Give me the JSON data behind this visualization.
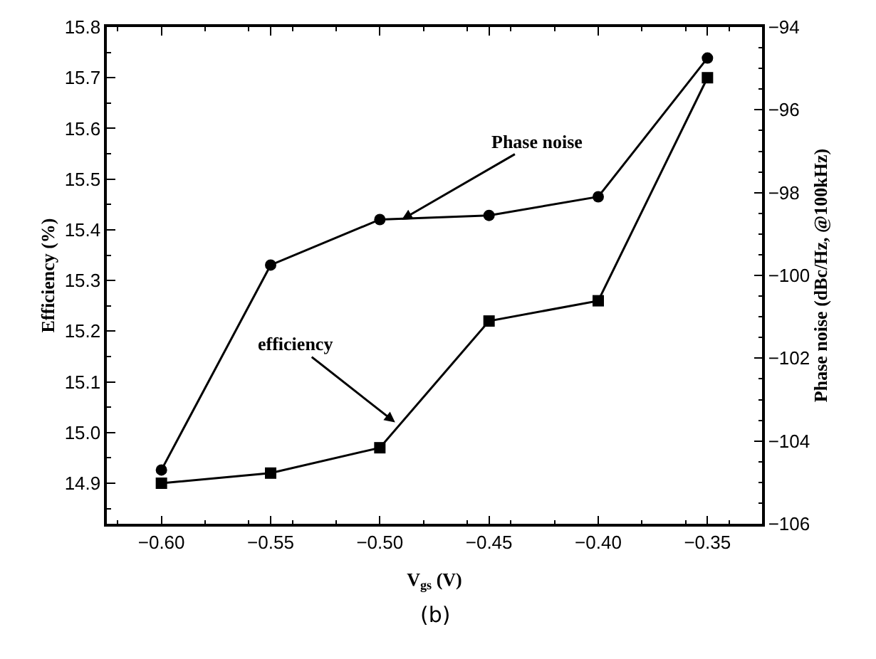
{
  "chart_data": {
    "type": "line",
    "xlabel": "V$_{gs}$ (V)",
    "ylabel": "Efficiency (%)",
    "y2label": "Phase noise (dBc/Hz, @100kHz)",
    "x": [
      -0.6,
      -0.55,
      -0.5,
      -0.45,
      -0.4,
      -0.35
    ],
    "series": [
      {
        "color": "#000000",
        "marker": "square",
        "values": [
          14.9,
          14.92,
          14.97,
          15.22,
          15.26,
          15.7
        ]
      },
      {
        "color": "#000000",
        "marker": "circle",
        "axis": "y2",
        "values": [
          -104.7,
          -99.75,
          -98.65,
          -98.55,
          -98.1,
          -94.75
        ]
      }
    ],
    "xlim": [
      -0.625,
      -0.325
    ],
    "xticks": [
      {
        "value": -0.6,
        "label": "−0.60"
      },
      {
        "value": -0.55,
        "label": "−0.55"
      },
      {
        "value": -0.5,
        "label": "−0.50"
      },
      {
        "value": -0.45,
        "label": "−0.45"
      },
      {
        "value": -0.4,
        "label": "−0.40"
      },
      {
        "value": -0.35,
        "label": "−0.35"
      }
    ],
    "ylim": [
      14.82,
      15.8
    ],
    "yticks": [
      14.9,
      {
        "value": 15.0,
        "label": "15.0"
      },
      15.1,
      15.2,
      15.3,
      15.4,
      15.5,
      15.6,
      15.7,
      15.8
    ],
    "y2lim": [
      -106,
      -94
    ],
    "y2ticks": [
      {
        "value": -106,
        "label": "−106"
      },
      {
        "value": -104,
        "label": "−104"
      },
      {
        "value": -102,
        "label": "−102"
      },
      {
        "value": -100,
        "label": "−100"
      },
      {
        "value": -98,
        "label": "−98"
      },
      {
        "value": -96,
        "label": "−96"
      },
      {
        "value": -94,
        "label": "−94"
      }
    ],
    "line_style": "solid",
    "annotations": [
      {
        "text": "Phase noise",
        "x": -0.49,
        "y": 15.42
      },
      {
        "text": "efficiency",
        "x": -0.493,
        "y": 15.02
      },
      "(b)"
    ]
  }
}
